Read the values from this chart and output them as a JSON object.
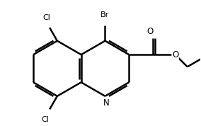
{
  "background": "#ffffff",
  "line_color": "#000000",
  "lw": 1.8,
  "fs": 8.5,
  "xlim": [
    -2.9,
    4.3
  ],
  "ylim": [
    -1.5,
    2.9
  ]
}
